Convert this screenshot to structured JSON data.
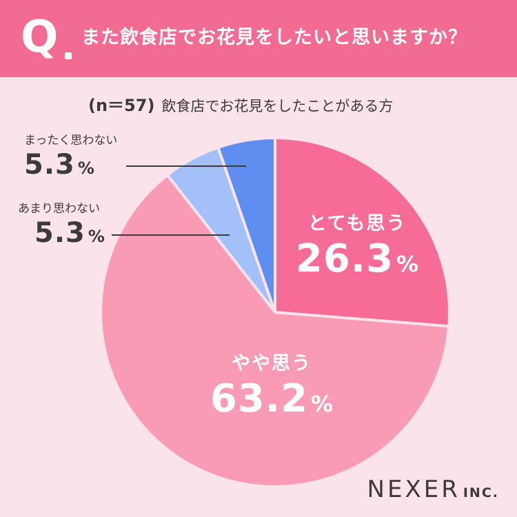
{
  "header": {
    "q_mark": "Q",
    "question": "また飲食店でお花見をしたいと思いますか？"
  },
  "subtitle": {
    "n": "(n＝57)",
    "text": "飲食店でお花見をしたことがある方"
  },
  "percent_symbol": "%",
  "logo": {
    "main": "NEXER",
    "suffix": "INC."
  },
  "colors": {
    "header": "#f26b93",
    "background": "#fbe3ec",
    "very_much": "#f76c97",
    "somewhat": "#f99bb5",
    "not_much": "#a4c0fa",
    "not_at_all": "#5e8ef0"
  },
  "chart_data": {
    "type": "pie",
    "title": "また飲食店でお花見をしたいと思いますか？",
    "subtitle": "(n＝57) 飲食店でお花見をしたことがある方",
    "categories": [
      "とても思う",
      "やや思う",
      "あまり思わない",
      "まったく思わない"
    ],
    "values": [
      26.3,
      63.2,
      5.3,
      5.3
    ],
    "value_labels": [
      "26.3",
      "63.2",
      "5.3",
      "5.3"
    ],
    "unit": "%",
    "colors": [
      "#f76c97",
      "#f99bb5",
      "#a4c0fa",
      "#5e8ef0"
    ],
    "start": "12 o'clock, clockwise"
  }
}
